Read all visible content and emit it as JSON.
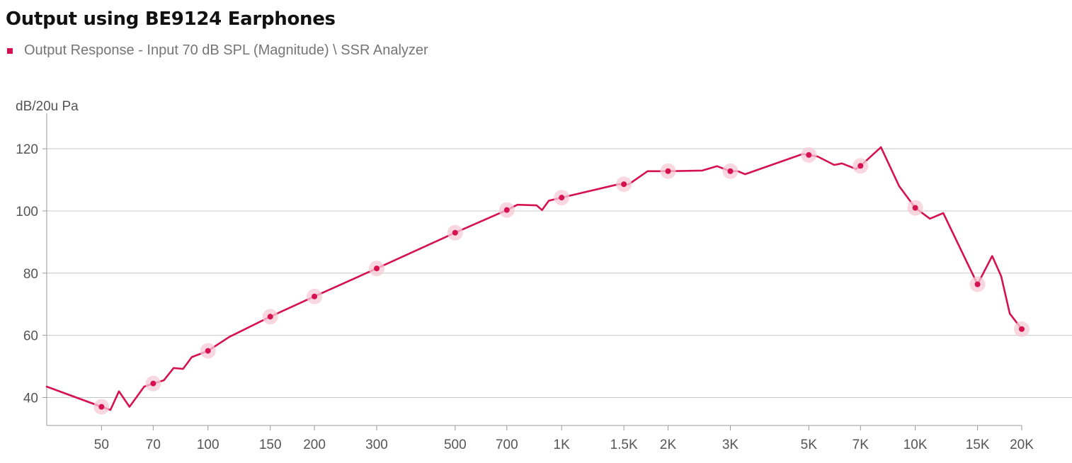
{
  "chart_data": {
    "type": "line",
    "title": "Output using BE9124 Earphones",
    "ylabel": "dB/20u Pa",
    "xlabel": "",
    "x_scale": "log",
    "xlim": [
      35,
      20000
    ],
    "ylim": [
      31,
      128
    ],
    "yticks": [
      40,
      60,
      80,
      100,
      120
    ],
    "xticks": [
      {
        "value": 50,
        "label": "50"
      },
      {
        "value": 70,
        "label": "70"
      },
      {
        "value": 100,
        "label": "100"
      },
      {
        "value": 150,
        "label": "150"
      },
      {
        "value": 200,
        "label": "200"
      },
      {
        "value": 300,
        "label": "300"
      },
      {
        "value": 500,
        "label": "500"
      },
      {
        "value": 700,
        "label": "700"
      },
      {
        "value": 1000,
        "label": "1K"
      },
      {
        "value": 1500,
        "label": "1.5K"
      },
      {
        "value": 2000,
        "label": "2K"
      },
      {
        "value": 3000,
        "label": "3K"
      },
      {
        "value": 5000,
        "label": "5K"
      },
      {
        "value": 7000,
        "label": "7K"
      },
      {
        "value": 10000,
        "label": "10K"
      },
      {
        "value": 15000,
        "label": "15K"
      },
      {
        "value": 20000,
        "label": "20K"
      }
    ],
    "grid": true,
    "legend_position": "top-left",
    "series": [
      {
        "name": "Output Response - Input 70 dB SPL (Magnitude) \\ SSR Analyzer",
        "color": "#d6114f",
        "x": [
          35,
          50,
          53,
          56,
          60,
          66,
          70,
          75,
          80,
          85,
          90,
          100,
          115,
          150,
          200,
          300,
          500,
          700,
          750,
          850,
          880,
          920,
          1000,
          1450,
          1550,
          1750,
          2000,
          2500,
          2750,
          3000,
          3150,
          3300,
          4800,
          5000,
          5300,
          5900,
          6200,
          6800,
          7000,
          8000,
          9000,
          10000,
          11000,
          12000,
          15000,
          16500,
          17500,
          18500,
          20000
        ],
        "y": [
          43.5,
          37,
          36,
          42,
          37,
          43.5,
          44.5,
          45.5,
          49.5,
          49.2,
          53,
          55,
          59.5,
          66,
          72.5,
          81.5,
          93,
          100.3,
          102,
          101.8,
          100.3,
          103.3,
          104.3,
          108.6,
          108.6,
          112.8,
          112.8,
          113,
          114.4,
          112.8,
          112.8,
          111.8,
          118.3,
          118,
          117.5,
          114.8,
          115.3,
          113.5,
          114.5,
          120.5,
          108,
          101,
          97.5,
          99.3,
          76.4,
          85.5,
          79,
          67,
          62
        ],
        "markers_x": [
          50,
          70,
          100,
          150,
          200,
          300,
          500,
          700,
          1000,
          1500,
          2000,
          3000,
          5000,
          7000,
          10000,
          15000,
          20000
        ],
        "markers_y": [
          37,
          44.5,
          55,
          66,
          72.5,
          81.5,
          93,
          100.3,
          104.3,
          108.6,
          112.8,
          112.8,
          118,
          114.5,
          101,
          76.4,
          62
        ]
      }
    ]
  }
}
